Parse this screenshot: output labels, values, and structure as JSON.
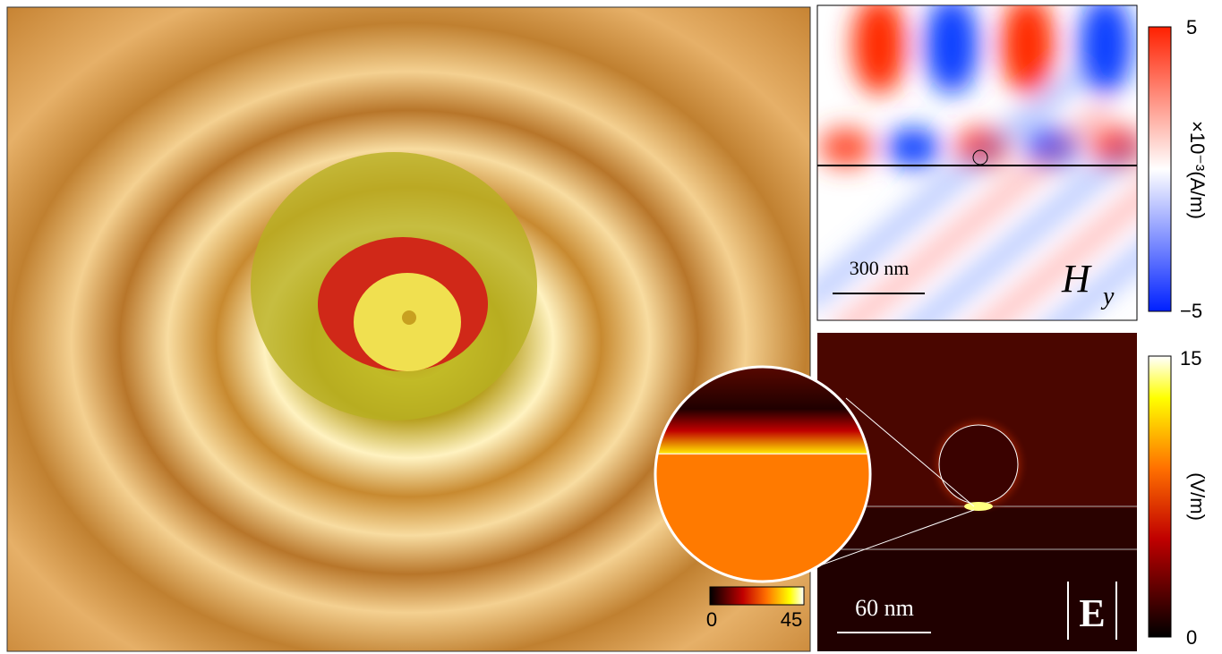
{
  "surface_panel": {
    "colorbar": {
      "min": "0",
      "max": "45"
    }
  },
  "hy_panel": {
    "scale_bar": "300 nm",
    "field_symbol": "H",
    "field_subscript": "y",
    "colorbar": {
      "max": "5",
      "min": "−5",
      "unit": "×10⁻³(A/m)"
    }
  },
  "e_panel": {
    "scale_bar": "60 nm",
    "field_symbol": "E",
    "colorbar": {
      "max": "15",
      "min": "0",
      "unit": "(V/m)"
    }
  }
}
